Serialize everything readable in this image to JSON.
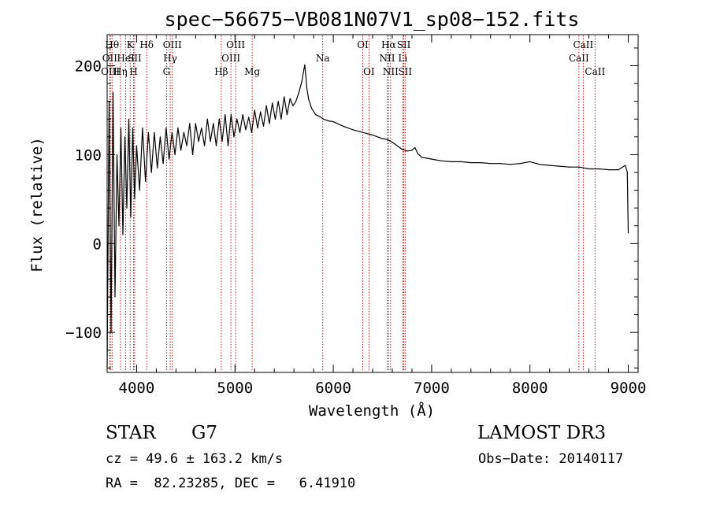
{
  "chart_data": {
    "type": "line",
    "title": "spec−56675−VB081N07V1_sp08−152.fits",
    "xlabel": "Wavelength (Å)",
    "ylabel": "Flux (relative)",
    "xlim": [
      3700,
      9100
    ],
    "ylim": [
      -145,
      235
    ],
    "x_ticks": [
      4000,
      5000,
      6000,
      7000,
      8000,
      9000
    ],
    "x_tick_labels": [
      "4000",
      "5000",
      "6000",
      "7000",
      "8000",
      "9000"
    ],
    "y_ticks": [
      -100,
      0,
      100,
      200
    ],
    "y_tick_labels": [
      "−100",
      "0",
      "100",
      "200"
    ],
    "grid": false,
    "series": [
      {
        "name": "flux",
        "color": "#000000",
        "x": [
          3700,
          3720,
          3740,
          3760,
          3780,
          3800,
          3820,
          3840,
          3860,
          3880,
          3900,
          3920,
          3940,
          3960,
          3980,
          4000,
          4030,
          4060,
          4090,
          4120,
          4150,
          4180,
          4210,
          4240,
          4270,
          4300,
          4330,
          4360,
          4390,
          4420,
          4450,
          4480,
          4510,
          4540,
          4570,
          4600,
          4630,
          4660,
          4690,
          4720,
          4750,
          4780,
          4810,
          4840,
          4870,
          4900,
          4930,
          4960,
          4990,
          5020,
          5050,
          5080,
          5110,
          5140,
          5170,
          5200,
          5230,
          5260,
          5290,
          5320,
          5350,
          5380,
          5410,
          5440,
          5470,
          5500,
          5530,
          5560,
          5590,
          5620,
          5650,
          5680,
          5700,
          5710,
          5720,
          5730,
          5750,
          5780,
          5820,
          5860,
          5900,
          5950,
          6000,
          6100,
          6200,
          6300,
          6400,
          6500,
          6550,
          6600,
          6650,
          6700,
          6750,
          6800,
          6830,
          6860,
          6900,
          6950,
          7000,
          7100,
          7200,
          7300,
          7400,
          7500,
          7600,
          7700,
          7800,
          7900,
          8000,
          8100,
          8200,
          8300,
          8400,
          8500,
          8600,
          8700,
          8800,
          8900,
          8970,
          8990,
          9000
        ],
        "values": [
          -140,
          160,
          -100,
          170,
          -60,
          100,
          20,
          130,
          10,
          120,
          40,
          140,
          30,
          130,
          50,
          110,
          60,
          130,
          70,
          125,
          80,
          125,
          85,
          120,
          90,
          130,
          95,
          125,
          100,
          130,
          105,
          125,
          110,
          135,
          100,
          135,
          115,
          130,
          110,
          140,
          115,
          135,
          110,
          140,
          115,
          145,
          110,
          145,
          120,
          140,
          125,
          145,
          128,
          142,
          125,
          150,
          130,
          148,
          132,
          155,
          135,
          158,
          140,
          160,
          140,
          165,
          145,
          163,
          155,
          160,
          170,
          182,
          195,
          201,
          190,
          175,
          162,
          152,
          145,
          143,
          140,
          138,
          137,
          132,
          128,
          125,
          122,
          118,
          117,
          114,
          110,
          106,
          104,
          105,
          108,
          101,
          97,
          96,
          95,
          93,
          92,
          92,
          91,
          91,
          90,
          90,
          89,
          90,
          92,
          89,
          88,
          87,
          86,
          86,
          84,
          84,
          83,
          83,
          88,
          80,
          12
        ]
      }
    ],
    "lines": [
      {
        "wl": 3750,
        "label": "Hθ",
        "row": 1
      },
      {
        "wl": 3727,
        "label": "OII",
        "row": 2
      },
      {
        "wl": 3733,
        "label": "OIII",
        "row": 3
      },
      {
        "wl": 3835,
        "label": "Hη",
        "row": 3
      },
      {
        "wl": 3889,
        "label": "HeI",
        "row": 2
      },
      {
        "wl": 3934,
        "label": "K",
        "row": 1
      },
      {
        "wl": 3969,
        "label": "H",
        "row": 3
      },
      {
        "wl": 3980,
        "label": "SII",
        "row": 2
      },
      {
        "wl": 4102,
        "label": "Hδ",
        "row": 1
      },
      {
        "wl": 4341,
        "label": "Hγ",
        "row": 2
      },
      {
        "wl": 4304,
        "label": "G",
        "row": 3
      },
      {
        "wl": 4363,
        "label": "OIII",
        "row": 1
      },
      {
        "wl": 4861,
        "label": "Hβ",
        "row": 3
      },
      {
        "wl": 4959,
        "label": "OIII",
        "row": 2
      },
      {
        "wl": 5007,
        "label": "OIII",
        "row": 1
      },
      {
        "wl": 5175,
        "label": "Mg",
        "row": 3
      },
      {
        "wl": 5893,
        "label": "Na",
        "row": 2
      },
      {
        "wl": 6300,
        "label": "OI",
        "row": 1
      },
      {
        "wl": 6363,
        "label": "OI",
        "row": 3
      },
      {
        "wl": 6548,
        "label": "NII",
        "row": 2
      },
      {
        "wl": 6563,
        "label": "Hα",
        "row": 1
      },
      {
        "wl": 6583,
        "label": "NII",
        "row": 3
      },
      {
        "wl": 6707,
        "label": "Li",
        "row": 2
      },
      {
        "wl": 6717,
        "label": "SII",
        "row": 1
      },
      {
        "wl": 6731,
        "label": "SII",
        "row": 3
      },
      {
        "wl": 8498,
        "label": "CaII",
        "row": 2
      },
      {
        "wl": 8542,
        "label": "CaII",
        "row": 1
      },
      {
        "wl": 8662,
        "label": "CaII",
        "row": 3
      }
    ],
    "line_color": "#c00000"
  },
  "info": {
    "object_class": "STAR",
    "subclass": "G7",
    "survey": "LAMOST DR3",
    "redshift": "cz = 49.6 ± 163.2 km/s",
    "obs_date": "Obs−Date: 20140117",
    "coords": "RA =  82.23285, DEC =   6.41910"
  }
}
